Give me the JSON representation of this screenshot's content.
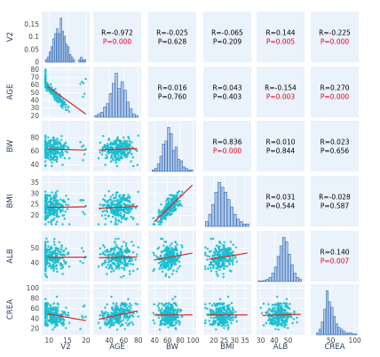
{
  "chart_data": {
    "type": "scatter-matrix",
    "variables": [
      "V2",
      "AGE",
      "BW",
      "BMI",
      "ALB",
      "CREA"
    ],
    "ranges": {
      "V2": [
        8,
        21
      ],
      "AGE": [
        18,
        84
      ],
      "BW": [
        30,
        105
      ],
      "BMI": [
        15,
        38
      ],
      "ALB": [
        27,
        62
      ],
      "CREA": [
        8,
        108
      ]
    },
    "ticks": {
      "V2": [
        10,
        15,
        20
      ],
      "AGE": [
        40,
        60,
        80
      ],
      "BW": [
        40,
        60,
        80,
        100
      ],
      "BMI": [
        20,
        25,
        30,
        35
      ],
      "ALB": [
        30,
        40,
        50
      ],
      "CREA": [
        50,
        100
      ]
    },
    "diag_y_ticks": {
      "V2": {
        "labels": [
          "0",
          "0.05",
          "0.1",
          "0.15"
        ],
        "values": [
          0,
          0.05,
          0.1,
          0.15
        ],
        "max": 0.2
      }
    },
    "row_y_ticks": {
      "AGE": [
        20,
        30,
        40,
        50,
        60,
        70,
        80
      ],
      "BW": [
        40,
        60,
        80
      ],
      "BMI": [
        20,
        25,
        30,
        35
      ],
      "ALB": [
        40,
        50
      ],
      "CREA": [
        20,
        40,
        60,
        80,
        100
      ]
    },
    "correlations": [
      {
        "row": "V2",
        "col": "AGE",
        "r": "R=-0.972",
        "p": "P=0.000",
        "significant": true
      },
      {
        "row": "V2",
        "col": "BW",
        "r": "R=-0.025",
        "p": "P=0.628",
        "significant": false
      },
      {
        "row": "V2",
        "col": "BMI",
        "r": "R=-0.065",
        "p": "P=0.209",
        "significant": false
      },
      {
        "row": "V2",
        "col": "ALB",
        "r": "R=0.144",
        "p": "P=0.005",
        "significant": true
      },
      {
        "row": "V2",
        "col": "CREA",
        "r": "R=-0.225",
        "p": "P=0.000",
        "significant": true
      },
      {
        "row": "AGE",
        "col": "BW",
        "r": "R=0.016",
        "p": "P=0.760",
        "significant": false
      },
      {
        "row": "AGE",
        "col": "BMI",
        "r": "R=0.043",
        "p": "P=0.403",
        "significant": false
      },
      {
        "row": "AGE",
        "col": "ALB",
        "r": "R=-0.154",
        "p": "P=0.003",
        "significant": true
      },
      {
        "row": "AGE",
        "col": "CREA",
        "r": "R=0.270",
        "p": "P=0.000",
        "significant": true
      },
      {
        "row": "BW",
        "col": "BMI",
        "r": "R=0.836",
        "p": "P=0.000",
        "significant": true
      },
      {
        "row": "BW",
        "col": "ALB",
        "r": "R=0.010",
        "p": "P=0.844",
        "significant": false
      },
      {
        "row": "BW",
        "col": "CREA",
        "r": "R=0.023",
        "p": "P=0.656",
        "significant": false
      },
      {
        "row": "BMI",
        "col": "ALB",
        "r": "R=0.031",
        "p": "P=0.544",
        "significant": false
      },
      {
        "row": "BMI",
        "col": "CREA",
        "r": "R=-0.028",
        "p": "P=0.587",
        "significant": false
      },
      {
        "row": "ALB",
        "col": "CREA",
        "r": "R=0.140",
        "p": "P=0.007",
        "significant": true
      }
    ],
    "histograms": {
      "V2": {
        "bins": [
          9,
          9.5,
          10,
          10.5,
          11,
          11.5,
          12,
          12.5,
          13,
          13.5,
          14,
          14.5,
          15,
          15.5,
          16,
          16.5,
          17,
          17.5,
          18,
          18.5,
          19,
          19.5,
          20
        ],
        "counts": [
          0.01,
          0.02,
          0.04,
          0.06,
          0.09,
          0.11,
          0.13,
          0.11,
          0.17,
          0.12,
          0.1,
          0.07,
          0.06,
          0.03,
          0.02,
          0.01,
          0,
          0,
          0.01,
          0.02,
          0.01,
          0.01
        ]
      },
      "AGE": {
        "bins": [
          20,
          24,
          28,
          32,
          36,
          40,
          44,
          48,
          52,
          56,
          60,
          64,
          68,
          72,
          76,
          80
        ],
        "counts": [
          1,
          2,
          3,
          6,
          8,
          14,
          20,
          26,
          17,
          21,
          16,
          9,
          5,
          2,
          1
        ]
      },
      "BW": {
        "bins": [
          36,
          40,
          44,
          48,
          52,
          56,
          60,
          64,
          68,
          72,
          76,
          80,
          84,
          88,
          92,
          96,
          100
        ],
        "counts": [
          1,
          2,
          5,
          10,
          18,
          20,
          29,
          25,
          14,
          16,
          8,
          7,
          3,
          2,
          1,
          1
        ]
      },
      "BMI": {
        "bins": [
          16,
          17.5,
          19,
          20.5,
          22,
          23.5,
          25,
          26.5,
          28,
          29.5,
          31,
          32.5,
          34,
          35.5,
          37
        ],
        "counts": [
          2,
          5,
          9,
          14,
          18,
          16,
          14,
          11,
          8,
          5,
          3,
          2,
          1,
          1
        ]
      },
      "ALB": {
        "bins": [
          28,
          30,
          32,
          34,
          36,
          38,
          40,
          42,
          44,
          46,
          48,
          50,
          52,
          54,
          56,
          58,
          60
        ],
        "counts": [
          0.3,
          0.3,
          0.5,
          1,
          2,
          4,
          7,
          12,
          17,
          21,
          19,
          13,
          8,
          4,
          2,
          1
        ]
      },
      "CREA": {
        "bins": [
          20,
          25,
          30,
          35,
          40,
          45,
          50,
          55,
          60,
          65,
          70,
          75,
          80,
          85,
          90,
          95,
          100,
          105
        ],
        "counts": [
          1,
          3,
          7,
          14,
          24,
          18,
          15,
          10,
          6,
          4,
          3,
          2,
          1,
          1,
          1,
          0.5,
          0.5
        ]
      }
    },
    "colors": {
      "points": "#17becf",
      "fit_line": "#d62728",
      "histogram": "#aec7e8",
      "histogram_edge": "#3b6fb6",
      "panel_bg": "#eaf2fb",
      "significant": "#e8001a",
      "normal_text": "#000000"
    },
    "grid": true
  }
}
